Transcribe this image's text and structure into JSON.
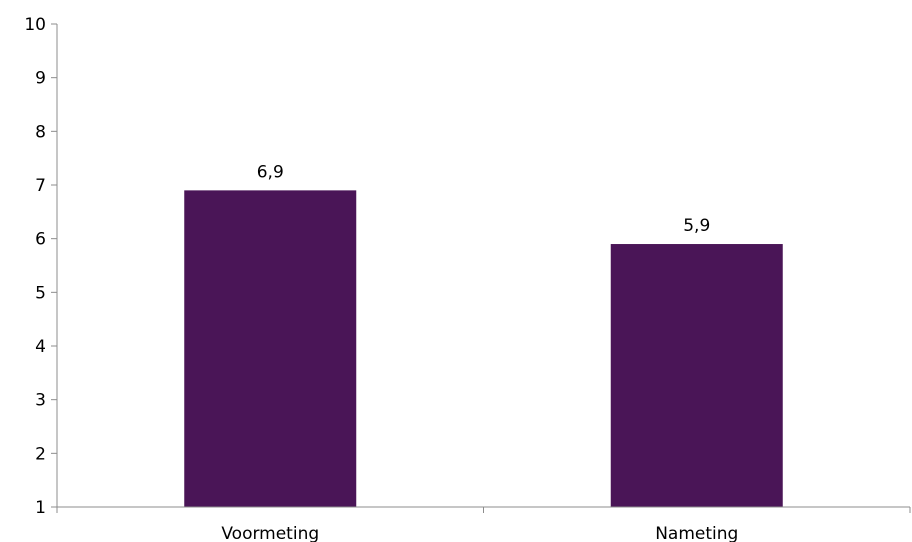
{
  "chart_data": {
    "type": "bar",
    "categories": [
      "Voormeting",
      "Nameting"
    ],
    "values": [
      6.9,
      5.9
    ],
    "data_labels": [
      "6,9",
      "5,9"
    ],
    "title": "",
    "xlabel": "",
    "ylabel": "",
    "ylim": [
      1,
      10
    ],
    "yticks": [
      1,
      2,
      3,
      4,
      5,
      6,
      7,
      8,
      9,
      10
    ],
    "grid": false,
    "legend": "none",
    "colors": {
      "bar": "#4a1557",
      "axis": "#8c8c8c"
    }
  }
}
